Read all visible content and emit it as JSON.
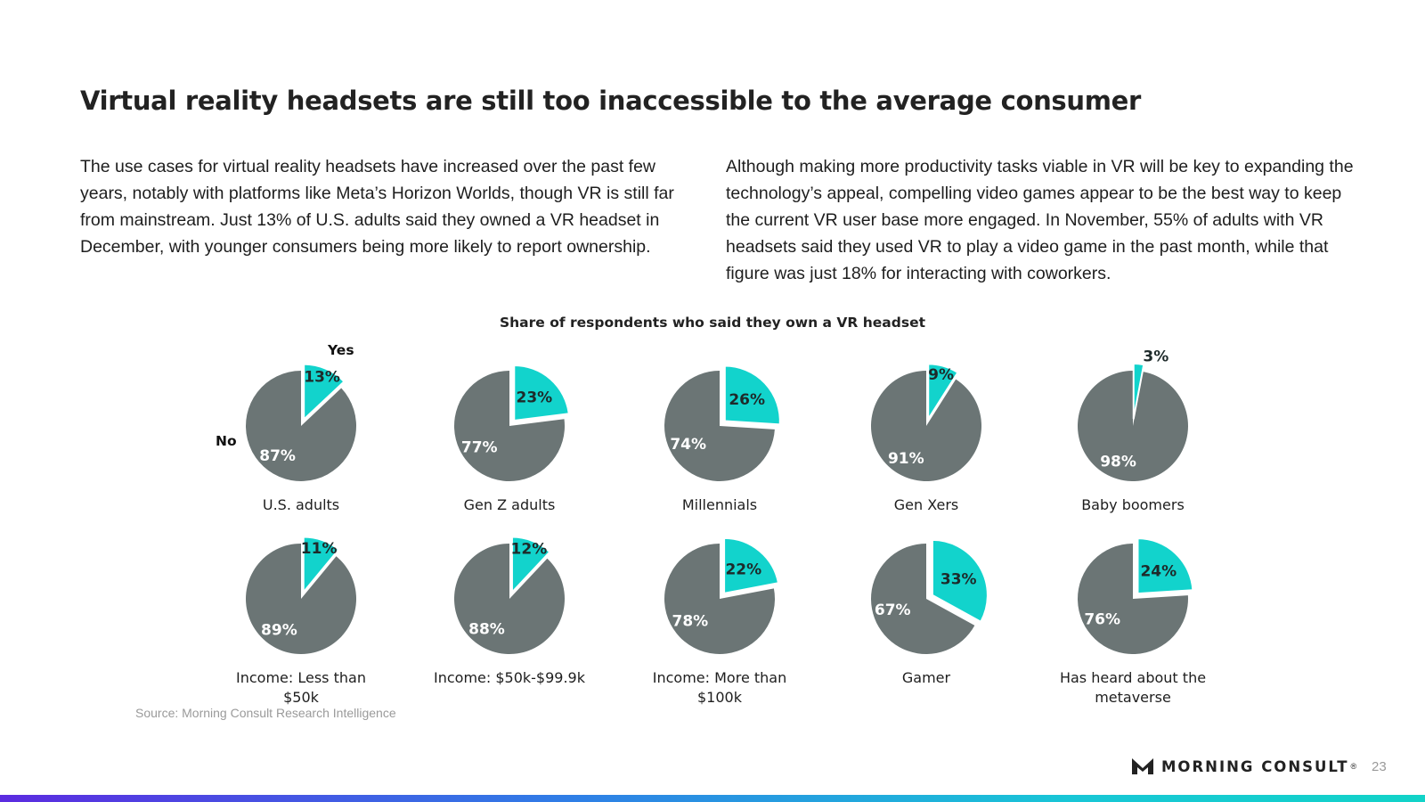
{
  "title": "Virtual reality headsets are still too inaccessible to the average consumer",
  "paragraph_left": "The use cases for virtual reality headsets have increased over the past few years, notably with platforms like Meta’s Horizon Worlds, though VR is still far from mainstream. Just 13% of U.S. adults said they owned a VR headset in December, with younger consumers being more likely to report ownership.",
  "paragraph_right": "Although making more productivity tasks viable in VR will be key to expanding the technology’s appeal, compelling video games appear to be the best way to keep the current VR user base more engaged. In November, 55% of adults with VR headsets said they used VR to play a video game in the past month, while that figure was just 18% for interacting with coworkers.",
  "chart_data": {
    "type": "pie",
    "title": "Share of respondents who said they own a VR headset",
    "legend": {
      "yes": "Yes",
      "no": "No"
    },
    "colors": {
      "yes": "#12d3cc",
      "no": "#6b7575"
    },
    "pies": [
      {
        "category": "U.S. adults",
        "yes": 13,
        "no": 87,
        "yes_label": "13%",
        "no_label": "87%"
      },
      {
        "category": "Gen Z adults",
        "yes": 23,
        "no": 77,
        "yes_label": "23%",
        "no_label": "77%"
      },
      {
        "category": "Millennials",
        "yes": 26,
        "no": 74,
        "yes_label": "26%",
        "no_label": "74%"
      },
      {
        "category": "Gen Xers",
        "yes": 9,
        "no": 91,
        "yes_label": "9%",
        "no_label": "91%"
      },
      {
        "category": "Baby boomers",
        "yes": 3,
        "no": 98,
        "yes_label": "3%",
        "no_label": "98%"
      },
      {
        "category": "Income: Less than $50k",
        "yes": 11,
        "no": 89,
        "yes_label": "11%",
        "no_label": "89%"
      },
      {
        "category": "Income: $50k-$99.9k",
        "yes": 12,
        "no": 88,
        "yes_label": "12%",
        "no_label": "88%"
      },
      {
        "category": "Income: More than $100k",
        "yes": 22,
        "no": 78,
        "yes_label": "22%",
        "no_label": "78%"
      },
      {
        "category": "Gamer",
        "yes": 33,
        "no": 67,
        "yes_label": "33%",
        "no_label": "67%"
      },
      {
        "category": "Has heard about the metaverse",
        "yes": 24,
        "no": 76,
        "yes_label": "24%",
        "no_label": "76%"
      }
    ]
  },
  "source": "Source: Morning Consult Research Intelligence",
  "brand": {
    "name": "MORNING CONSULT",
    "reg": "®"
  },
  "page_number": "23"
}
